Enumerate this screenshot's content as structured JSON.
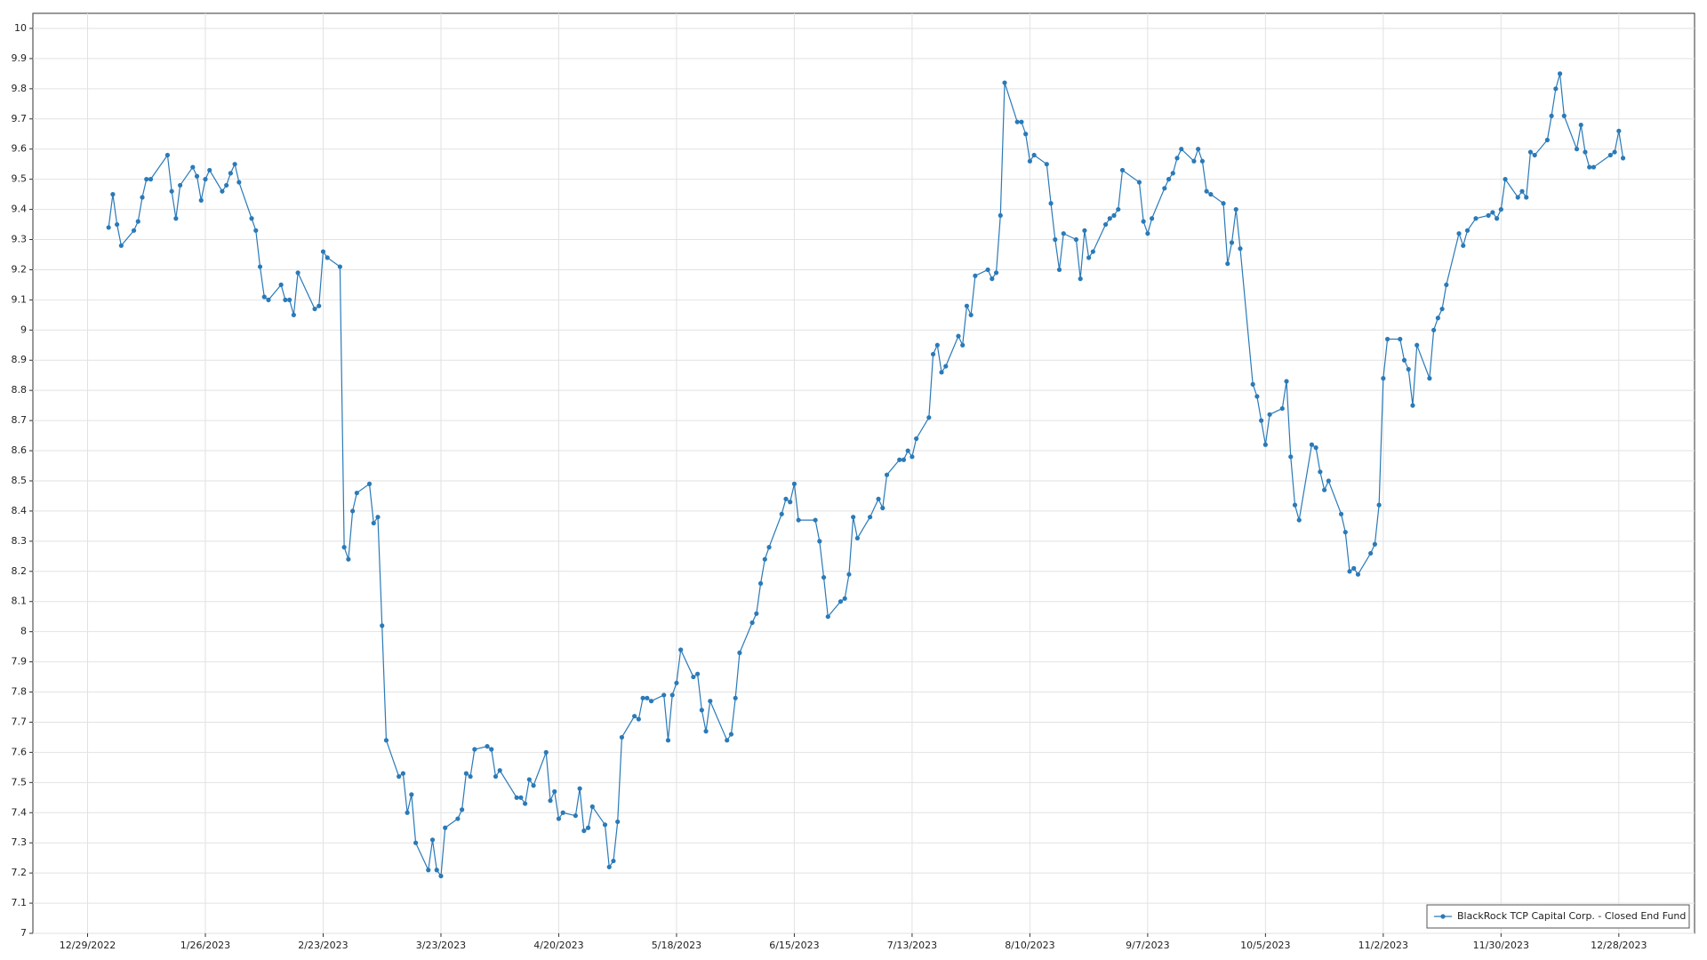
{
  "chart_data": {
    "type": "line",
    "x": [
      "1/3/2023",
      "1/4/2023",
      "1/5/2023",
      "1/6/2023",
      "1/9/2023",
      "1/10/2023",
      "1/11/2023",
      "1/12/2023",
      "1/13/2023",
      "1/17/2023",
      "1/18/2023",
      "1/19/2023",
      "1/20/2023",
      "1/23/2023",
      "1/24/2023",
      "1/25/2023",
      "1/26/2023",
      "1/27/2023",
      "1/30/2023",
      "1/31/2023",
      "2/1/2023",
      "2/2/2023",
      "2/3/2023",
      "2/6/2023",
      "2/7/2023",
      "2/8/2023",
      "2/9/2023",
      "2/10/2023",
      "2/13/2023",
      "2/14/2023",
      "2/15/2023",
      "2/16/2023",
      "2/17/2023",
      "2/21/2023",
      "2/22/2023",
      "2/23/2023",
      "2/24/2023",
      "2/27/2023",
      "2/28/2023",
      "3/1/2023",
      "3/2/2023",
      "3/3/2023",
      "3/6/2023",
      "3/7/2023",
      "3/8/2023",
      "3/9/2023",
      "3/10/2023",
      "3/13/2023",
      "3/14/2023",
      "3/15/2023",
      "3/16/2023",
      "3/17/2023",
      "3/20/2023",
      "3/21/2023",
      "3/22/2023",
      "3/23/2023",
      "3/24/2023",
      "3/27/2023",
      "3/28/2023",
      "3/29/2023",
      "3/30/2023",
      "3/31/2023",
      "4/3/2023",
      "4/4/2023",
      "4/5/2023",
      "4/6/2023",
      "4/10/2023",
      "4/11/2023",
      "4/12/2023",
      "4/13/2023",
      "4/14/2023",
      "4/17/2023",
      "4/18/2023",
      "4/19/2023",
      "4/20/2023",
      "4/21/2023",
      "4/24/2023",
      "4/25/2023",
      "4/26/2023",
      "4/27/2023",
      "4/28/2023",
      "5/1/2023",
      "5/2/2023",
      "5/3/2023",
      "5/4/2023",
      "5/5/2023",
      "5/8/2023",
      "5/9/2023",
      "5/10/2023",
      "5/11/2023",
      "5/12/2023",
      "5/15/2023",
      "5/16/2023",
      "5/17/2023",
      "5/18/2023",
      "5/19/2023",
      "5/22/2023",
      "5/23/2023",
      "5/24/2023",
      "5/25/2023",
      "5/26/2023",
      "5/30/2023",
      "5/31/2023",
      "6/1/2023",
      "6/2/2023",
      "6/5/2023",
      "6/6/2023",
      "6/7/2023",
      "6/8/2023",
      "6/9/2023",
      "6/12/2023",
      "6/13/2023",
      "6/14/2023",
      "6/15/2023",
      "6/16/2023",
      "6/20/2023",
      "6/21/2023",
      "6/22/2023",
      "6/23/2023",
      "6/26/2023",
      "6/27/2023",
      "6/28/2023",
      "6/29/2023",
      "6/30/2023",
      "7/3/2023",
      "7/5/2023",
      "7/6/2023",
      "7/7/2023",
      "7/10/2023",
      "7/11/2023",
      "7/12/2023",
      "7/13/2023",
      "7/14/2023",
      "7/17/2023",
      "7/18/2023",
      "7/19/2023",
      "7/20/2023",
      "7/21/2023",
      "7/24/2023",
      "7/25/2023",
      "7/26/2023",
      "7/27/2023",
      "7/28/2023",
      "7/31/2023",
      "8/1/2023",
      "8/2/2023",
      "8/3/2023",
      "8/4/2023",
      "8/7/2023",
      "8/8/2023",
      "8/9/2023",
      "8/10/2023",
      "8/11/2023",
      "8/14/2023",
      "8/15/2023",
      "8/16/2023",
      "8/17/2023",
      "8/18/2023",
      "8/21/2023",
      "8/22/2023",
      "8/23/2023",
      "8/24/2023",
      "8/25/2023",
      "8/28/2023",
      "8/29/2023",
      "8/30/2023",
      "8/31/2023",
      "9/1/2023",
      "9/5/2023",
      "9/6/2023",
      "9/7/2023",
      "9/8/2023",
      "9/11/2023",
      "9/12/2023",
      "9/13/2023",
      "9/14/2023",
      "9/15/2023",
      "9/18/2023",
      "9/19/2023",
      "9/20/2023",
      "9/21/2023",
      "9/22/2023",
      "9/25/2023",
      "9/26/2023",
      "9/27/2023",
      "9/28/2023",
      "9/29/2023",
      "10/2/2023",
      "10/3/2023",
      "10/4/2023",
      "10/5/2023",
      "10/6/2023",
      "10/9/2023",
      "10/10/2023",
      "10/11/2023",
      "10/12/2023",
      "10/13/2023",
      "10/16/2023",
      "10/17/2023",
      "10/18/2023",
      "10/19/2023",
      "10/20/2023",
      "10/23/2023",
      "10/24/2023",
      "10/25/2023",
      "10/26/2023",
      "10/27/2023",
      "10/30/2023",
      "10/31/2023",
      "11/1/2023",
      "11/2/2023",
      "11/3/2023",
      "11/6/2023",
      "11/7/2023",
      "11/8/2023",
      "11/9/2023",
      "11/10/2023",
      "11/13/2023",
      "11/14/2023",
      "11/15/2023",
      "11/16/2023",
      "11/17/2023",
      "11/20/2023",
      "11/21/2023",
      "11/22/2023",
      "11/24/2023",
      "11/27/2023",
      "11/28/2023",
      "11/29/2023",
      "11/30/2023",
      "12/1/2023",
      "12/4/2023",
      "12/5/2023",
      "12/6/2023",
      "12/7/2023",
      "12/8/2023",
      "12/11/2023",
      "12/12/2023",
      "12/13/2023",
      "12/14/2023",
      "12/15/2023",
      "12/18/2023",
      "12/19/2023",
      "12/20/2023",
      "12/21/2023",
      "12/22/2023",
      "12/26/2023",
      "12/27/2023",
      "12/28/2023",
      "12/29/2023"
    ],
    "series": [
      {
        "name": "BlackRock TCP Capital Corp. - Closed End Fund",
        "color": "#2a7ab8",
        "values": [
          9.34,
          9.45,
          9.35,
          9.28,
          9.33,
          9.36,
          9.44,
          9.5,
          9.5,
          9.58,
          9.46,
          9.37,
          9.48,
          9.54,
          9.51,
          9.43,
          9.5,
          9.53,
          9.46,
          9.48,
          9.52,
          9.55,
          9.49,
          9.37,
          9.33,
          9.21,
          9.11,
          9.1,
          9.15,
          9.1,
          9.1,
          9.05,
          9.19,
          9.07,
          9.08,
          9.26,
          9.24,
          9.21,
          8.28,
          8.24,
          8.4,
          8.46,
          8.49,
          8.36,
          8.38,
          8.02,
          7.64,
          7.52,
          7.53,
          7.4,
          7.46,
          7.3,
          7.21,
          7.31,
          7.21,
          7.19,
          7.35,
          7.38,
          7.41,
          7.53,
          7.52,
          7.61,
          7.62,
          7.61,
          7.52,
          7.54,
          7.45,
          7.45,
          7.43,
          7.51,
          7.49,
          7.6,
          7.44,
          7.47,
          7.38,
          7.4,
          7.39,
          7.48,
          7.34,
          7.35,
          7.42,
          7.36,
          7.22,
          7.24,
          7.37,
          7.65,
          7.72,
          7.71,
          7.78,
          7.78,
          7.77,
          7.79,
          7.64,
          7.79,
          7.83,
          7.94,
          7.85,
          7.86,
          7.74,
          7.67,
          7.77,
          7.64,
          7.66,
          7.78,
          7.93,
          8.03,
          8.06,
          8.16,
          8.24,
          8.28,
          8.39,
          8.44,
          8.43,
          8.49,
          8.37,
          8.37,
          8.3,
          8.18,
          8.05,
          8.1,
          8.11,
          8.19,
          8.38,
          8.31,
          8.38,
          8.44,
          8.41,
          8.52,
          8.57,
          8.57,
          8.6,
          8.58,
          8.64,
          8.71,
          8.92,
          8.95,
          8.86,
          8.88,
          8.98,
          8.95,
          9.08,
          9.05,
          9.18,
          9.2,
          9.17,
          9.19,
          9.38,
          9.82,
          9.69,
          9.69,
          9.65,
          9.56,
          9.58,
          9.55,
          9.42,
          9.3,
          9.2,
          9.32,
          9.3,
          9.17,
          9.33,
          9.24,
          9.26,
          9.35,
          9.37,
          9.38,
          9.4,
          9.53,
          9.49,
          9.36,
          9.32,
          9.37,
          9.47,
          9.5,
          9.52,
          9.57,
          9.6,
          9.56,
          9.6,
          9.56,
          9.46,
          9.45,
          9.42,
          9.22,
          9.29,
          9.4,
          9.27,
          8.82,
          8.78,
          8.7,
          8.62,
          8.72,
          8.74,
          8.83,
          8.58,
          8.42,
          8.37,
          8.62,
          8.61,
          8.53,
          8.47,
          8.5,
          8.39,
          8.33,
          8.2,
          8.21,
          8.19,
          8.26,
          8.29,
          8.42,
          8.84,
          8.97,
          8.97,
          8.9,
          8.87,
          8.75,
          8.95,
          8.84,
          9.0,
          9.04,
          9.07,
          9.15,
          9.32,
          9.28,
          9.33,
          9.37,
          9.38,
          9.39,
          9.37,
          9.4,
          9.5,
          9.44,
          9.46,
          9.44,
          9.59,
          9.58,
          9.63,
          9.71,
          9.8,
          9.85,
          9.71,
          9.6,
          9.68,
          9.59,
          9.54,
          9.54,
          9.58,
          9.59,
          9.66,
          9.57
        ]
      }
    ],
    "xlim": [
      "12/16/2022",
      "1/15/2024"
    ],
    "xticks": [
      "12/29/2022",
      "1/26/2023",
      "2/23/2023",
      "3/23/2023",
      "4/20/2023",
      "5/18/2023",
      "6/15/2023",
      "7/13/2023",
      "8/10/2023",
      "9/7/2023",
      "10/5/2023",
      "11/2/2023",
      "11/30/2023",
      "12/28/2023"
    ],
    "ylim": [
      7,
      10.05
    ],
    "yticks": [
      7,
      7.1,
      7.2,
      7.3,
      7.4,
      7.5,
      7.6,
      7.7,
      7.8,
      7.9,
      8,
      8.1,
      8.2,
      8.3,
      8.4,
      8.5,
      8.6,
      8.7,
      8.8,
      8.9,
      9,
      9.1,
      9.2,
      9.3,
      9.4,
      9.5,
      9.6,
      9.7,
      9.8,
      9.9,
      10
    ],
    "grid": true,
    "legend": "lower right"
  }
}
